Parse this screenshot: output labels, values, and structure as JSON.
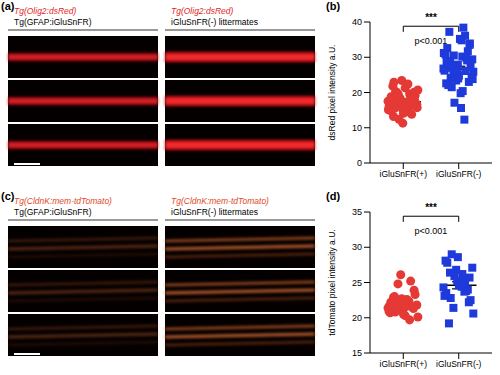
{
  "image_panels": [
    {
      "panel": "(a)",
      "left": [
        "Tg(Olig2:dsRed)",
        "Tg(GFAP:iGluSnFR)"
      ],
      "right": [
        "Tg(Olig2:dsRed)",
        "iGluSnFR(-) littermates"
      ]
    },
    {
      "panel": "(c)",
      "left": [
        "Tg(CldnK:mem-tdTomato)",
        "Tg(GFAP:iGluSnFR)"
      ],
      "right": [
        "Tg(CldnK:mem-tdTomato)",
        "iGluSnFR(-) littermates"
      ]
    }
  ],
  "chart_data": [
    {
      "type": "scatter",
      "panel": "(b)",
      "annotations": [
        "***",
        "p<0.001"
      ],
      "ylabel": "dsRed pixel intensity a.U.",
      "categories": [
        "iGluSnFR(+)",
        "iGluSnFR(-)"
      ],
      "colors": [
        "#e53935",
        "#1e3adb"
      ],
      "values": [
        [
          17.5,
          16.2,
          18.9,
          20.1,
          15.3,
          14.8,
          19.6,
          17.0,
          16.7,
          21.3,
          13.2,
          18.2,
          17.8,
          15.9,
          22.4,
          16.4,
          19.1,
          14.1,
          17.3,
          18.6,
          12.4,
          20.7,
          16.9,
          15.5,
          18.0,
          23.4,
          17.6,
          14.5,
          19.9,
          16.1,
          17.2,
          21.8,
          13.8,
          18.4,
          15.1,
          16.6,
          20.3,
          17.9,
          11.3,
          18.8,
          16.3,
          19.4,
          15.7,
          17.1,
          22.9
        ],
        [
          26.8,
          30.2,
          24.1,
          33.5,
          27.9,
          22.6,
          36.1,
          25.3,
          29.4,
          19.8,
          28.1,
          31.7,
          23.4,
          26.2,
          38.4,
          21.5,
          27.3,
          24.8,
          32.6,
          29.9,
          17.1,
          25.9,
          34.8,
          28.6,
          23.0,
          26.5,
          30.8,
          12.3,
          27.6,
          24.4,
          35.2,
          22.1,
          29.1,
          25.6,
          31.2,
          20.4,
          27.0,
          33.9,
          24.0,
          28.9,
          26.1,
          30.5,
          23.8,
          15.6,
          37.2
        ]
      ],
      "means": [
        17.4,
        26.6
      ],
      "errors": [
        0.45,
        0.85
      ],
      "ylim": [
        0,
        40
      ],
      "yticks": [
        0,
        10,
        20,
        30,
        40
      ]
    },
    {
      "type": "scatter",
      "panel": "(d)",
      "annotations": [
        "***",
        "p<0.001"
      ],
      "ylabel": "tdTomato pixel intensity a.U.",
      "categories": [
        "iGluSnFR(+)",
        "iGluSnFR(-)"
      ],
      "colors": [
        "#e53935",
        "#1e3adb"
      ],
      "values": [
        [
          21.4,
          22.6,
          20.8,
          23.9,
          21.1,
          22.2,
          19.7,
          24.8,
          21.8,
          20.3,
          22.9,
          21.5,
          26.1,
          20.9,
          22.4,
          21.2,
          23.3,
          20.5,
          21.9,
          25.2,
          22.0,
          20.1,
          21.6,
          23.0,
          21.3,
          22.7,
          20.7,
          22.3
        ],
        [
          24.3,
          26.2,
          22.8,
          25.7,
          28.6,
          23.5,
          24.9,
          21.4,
          27.1,
          25.1,
          19.2,
          24.0,
          26.8,
          23.1,
          25.5,
          29.0,
          22.5,
          24.6,
          27.8,
          23.8,
          25.9,
          20.6,
          24.4,
          26.4,
          22.2,
          25.2,
          28.1,
          23.7
        ]
      ],
      "means": [
        21.9,
        24.6
      ],
      "errors": [
        0.35,
        0.5
      ],
      "ylim": [
        15,
        35
      ],
      "yticks": [
        15,
        20,
        25,
        30,
        35
      ]
    }
  ]
}
